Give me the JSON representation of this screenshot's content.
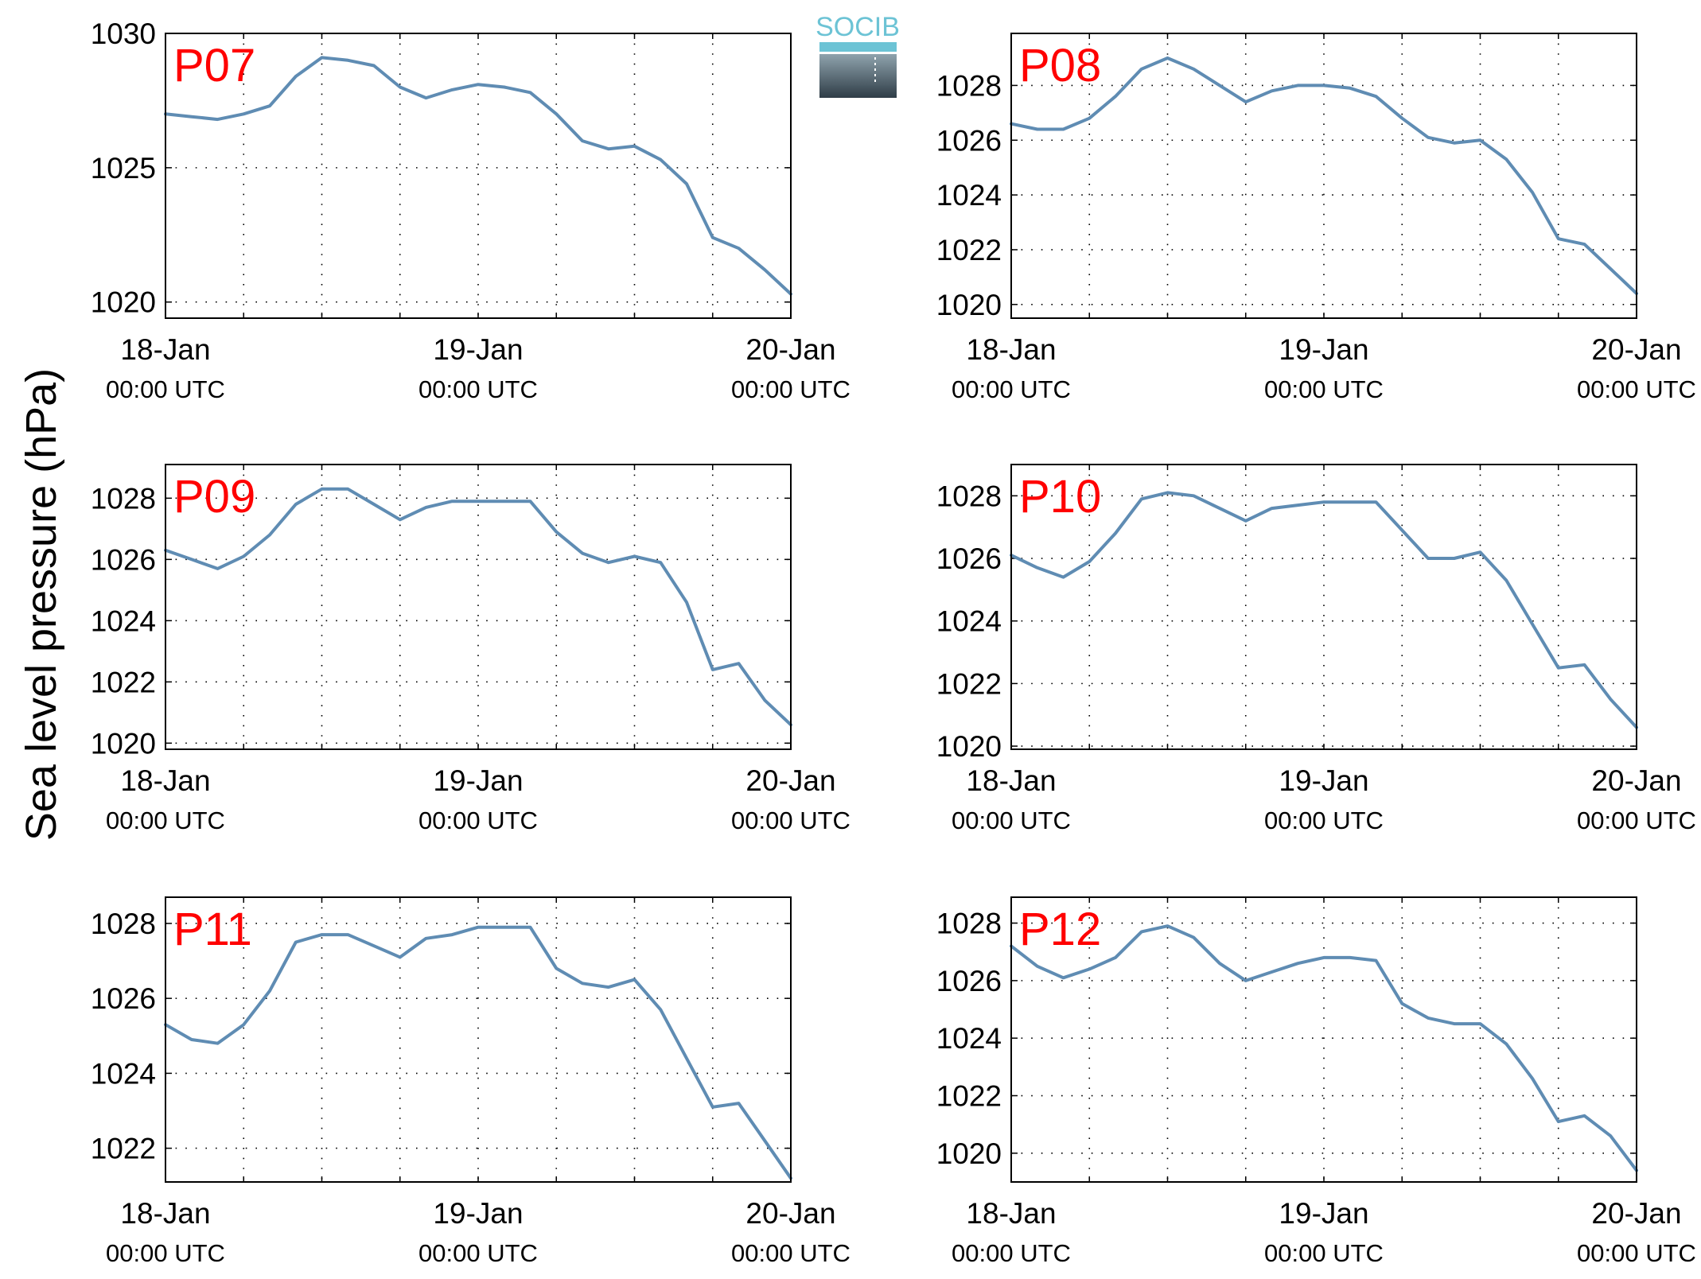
{
  "figure": {
    "ylabel": "Sea level pressure (hPa)",
    "logo_text": "SOCIB",
    "line_color": "#5f8cb3",
    "label_color": "#ff0000"
  },
  "chart_data": [
    {
      "type": "line",
      "name": "P07",
      "x_ticks": [
        {
          "line1": "18-Jan",
          "line2": "00:00 UTC"
        },
        {
          "line1": "19-Jan",
          "line2": "00:00 UTC"
        },
        {
          "line1": "20-Jan",
          "line2": "00:00 UTC"
        }
      ],
      "x_hours": [
        0,
        2,
        4,
        6,
        8,
        10,
        12,
        14,
        16,
        18,
        20,
        22,
        24,
        26,
        28,
        30,
        32,
        34,
        36,
        38,
        40,
        42,
        44,
        46,
        48
      ],
      "ylim": [
        1019.4,
        1030
      ],
      "y_ticks": [
        1020,
        1025,
        1030
      ],
      "grid": true,
      "values": [
        1027.0,
        1026.9,
        1026.8,
        1027.0,
        1027.3,
        1028.4,
        1029.1,
        1029.0,
        1028.8,
        1028.0,
        1027.6,
        1027.9,
        1028.1,
        1028.0,
        1027.8,
        1027.0,
        1026.0,
        1025.7,
        1025.8,
        1025.3,
        1024.4,
        1022.4,
        1022.0,
        1021.2,
        1020.3
      ]
    },
    {
      "type": "line",
      "name": "P08",
      "x_ticks": [
        {
          "line1": "18-Jan",
          "line2": "00:00 UTC"
        },
        {
          "line1": "19-Jan",
          "line2": "00:00 UTC"
        },
        {
          "line1": "20-Jan",
          "line2": "00:00 UTC"
        }
      ],
      "x_hours": [
        0,
        2,
        4,
        6,
        8,
        10,
        12,
        14,
        16,
        18,
        20,
        22,
        24,
        26,
        28,
        30,
        32,
        34,
        36,
        38,
        40,
        42,
        44,
        46,
        48
      ],
      "ylim": [
        1019.5,
        1029.9
      ],
      "y_ticks": [
        1020,
        1022,
        1024,
        1026,
        1028
      ],
      "grid": true,
      "values": [
        1026.6,
        1026.4,
        1026.4,
        1026.8,
        1027.6,
        1028.6,
        1029.0,
        1028.6,
        1028.0,
        1027.4,
        1027.8,
        1028.0,
        1028.0,
        1027.9,
        1027.6,
        1026.8,
        1026.1,
        1025.9,
        1026.0,
        1025.3,
        1024.1,
        1022.4,
        1022.2,
        1021.3,
        1020.4
      ]
    },
    {
      "type": "line",
      "name": "P09",
      "x_ticks": [
        {
          "line1": "18-Jan",
          "line2": "00:00 UTC"
        },
        {
          "line1": "19-Jan",
          "line2": "00:00 UTC"
        },
        {
          "line1": "20-Jan",
          "line2": "00:00 UTC"
        }
      ],
      "x_hours": [
        0,
        2,
        4,
        6,
        8,
        10,
        12,
        14,
        16,
        18,
        20,
        22,
        24,
        26,
        28,
        30,
        32,
        34,
        36,
        38,
        40,
        42,
        44,
        46,
        48
      ],
      "ylim": [
        1019.8,
        1029.1
      ],
      "y_ticks": [
        1020,
        1022,
        1024,
        1026,
        1028
      ],
      "grid": true,
      "values": [
        1026.3,
        1026.0,
        1025.7,
        1026.1,
        1026.8,
        1027.8,
        1028.3,
        1028.3,
        1027.8,
        1027.3,
        1027.7,
        1027.9,
        1027.9,
        1027.9,
        1027.9,
        1026.9,
        1026.2,
        1025.9,
        1026.1,
        1025.9,
        1024.6,
        1022.4,
        1022.6,
        1021.4,
        1020.6
      ]
    },
    {
      "type": "line",
      "name": "P10",
      "x_ticks": [
        {
          "line1": "18-Jan",
          "line2": "00:00 UTC"
        },
        {
          "line1": "19-Jan",
          "line2": "00:00 UTC"
        },
        {
          "line1": "20-Jan",
          "line2": "00:00 UTC"
        }
      ],
      "x_hours": [
        0,
        2,
        4,
        6,
        8,
        10,
        12,
        14,
        16,
        18,
        20,
        22,
        24,
        26,
        28,
        30,
        32,
        34,
        36,
        38,
        40,
        42,
        44,
        46,
        48
      ],
      "ylim": [
        1019.9,
        1029
      ],
      "y_ticks": [
        1020,
        1022,
        1024,
        1026,
        1028
      ],
      "grid": true,
      "values": [
        1026.1,
        1025.7,
        1025.4,
        1025.9,
        1026.8,
        1027.9,
        1028.1,
        1028.0,
        1027.6,
        1027.2,
        1027.6,
        1027.7,
        1027.8,
        1027.8,
        1027.8,
        1026.9,
        1026.0,
        1026.0,
        1026.2,
        1025.3,
        1023.9,
        1022.5,
        1022.6,
        1021.5,
        1020.6
      ]
    },
    {
      "type": "line",
      "name": "P11",
      "x_ticks": [
        {
          "line1": "18-Jan",
          "line2": "00:00 UTC"
        },
        {
          "line1": "19-Jan",
          "line2": "00:00 UTC"
        },
        {
          "line1": "20-Jan",
          "line2": "00:00 UTC"
        }
      ],
      "x_hours": [
        0,
        2,
        4,
        6,
        8,
        10,
        12,
        14,
        16,
        18,
        20,
        22,
        24,
        26,
        28,
        30,
        32,
        34,
        36,
        38,
        40,
        42,
        44,
        46,
        48
      ],
      "ylim": [
        1021.1,
        1028.7
      ],
      "y_ticks": [
        1022,
        1024,
        1026,
        1028
      ],
      "grid": true,
      "values": [
        1025.3,
        1024.9,
        1024.8,
        1025.3,
        1026.2,
        1027.5,
        1027.7,
        1027.7,
        1027.4,
        1027.1,
        1027.6,
        1027.7,
        1027.9,
        1027.9,
        1027.9,
        1026.8,
        1026.4,
        1026.3,
        1026.5,
        1025.7,
        1024.4,
        1023.1,
        1023.2,
        1022.2,
        1021.2
      ]
    },
    {
      "type": "line",
      "name": "P12",
      "x_ticks": [
        {
          "line1": "18-Jan",
          "line2": "00:00 UTC"
        },
        {
          "line1": "19-Jan",
          "line2": "00:00 UTC"
        },
        {
          "line1": "20-Jan",
          "line2": "00:00 UTC"
        }
      ],
      "x_hours": [
        0,
        2,
        4,
        6,
        8,
        10,
        12,
        14,
        16,
        18,
        20,
        22,
        24,
        26,
        28,
        30,
        32,
        34,
        36,
        38,
        40,
        42,
        44,
        46,
        48
      ],
      "ylim": [
        1019.0,
        1028.9
      ],
      "y_ticks": [
        1020,
        1022,
        1024,
        1026,
        1028
      ],
      "grid": true,
      "values": [
        1027.2,
        1026.5,
        1026.1,
        1026.4,
        1026.8,
        1027.7,
        1027.9,
        1027.5,
        1026.6,
        1026.0,
        1026.3,
        1026.6,
        1026.8,
        1026.8,
        1026.7,
        1025.2,
        1024.7,
        1024.5,
        1024.5,
        1023.8,
        1022.6,
        1021.1,
        1021.3,
        1020.6,
        1019.4
      ]
    }
  ]
}
